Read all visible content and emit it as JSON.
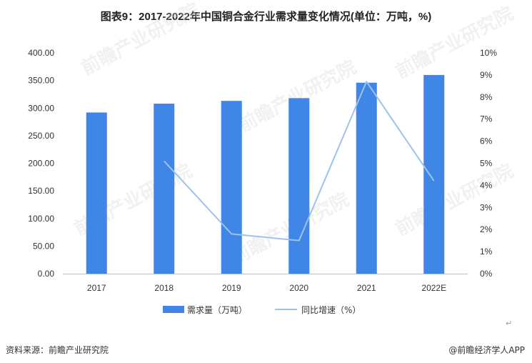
{
  "title": "图表9：2017-2022年中国铜合金行业需求量变化情况(单位：万吨，%)",
  "source": "资料来源：前瞻产业研究院",
  "brand": "@前瞻经济学人APP",
  "watermark_text": "前瞻产业研究院",
  "return_symbol": "↵",
  "colors": {
    "bar": "#3f86e6",
    "line": "#9dc3ec",
    "axis": "#bfbfbf"
  },
  "chart_data": {
    "type": "bar",
    "categories": [
      "2017",
      "2018",
      "2019",
      "2020",
      "2021",
      "2022E"
    ],
    "series": [
      {
        "name": "需求量（万吨）",
        "type": "bar",
        "axis": "left",
        "values": [
          292,
          308,
          313,
          318,
          346,
          360
        ]
      },
      {
        "name": "同比增速（%）",
        "type": "line",
        "axis": "right",
        "values": [
          null,
          5.1,
          1.8,
          1.5,
          8.7,
          4.2
        ]
      }
    ],
    "yleft": {
      "min": 0,
      "max": 400,
      "ticks": [
        "0.00",
        "50.00",
        "100.00",
        "150.00",
        "200.00",
        "250.00",
        "300.00",
        "350.00",
        "400.00"
      ]
    },
    "yright": {
      "min": 0,
      "max": 10,
      "ticks": [
        "0%",
        "1%",
        "2%",
        "3%",
        "4%",
        "5%",
        "6%",
        "7%",
        "8%",
        "9%",
        "10%"
      ]
    },
    "legend_position": "bottom",
    "grid": false
  }
}
